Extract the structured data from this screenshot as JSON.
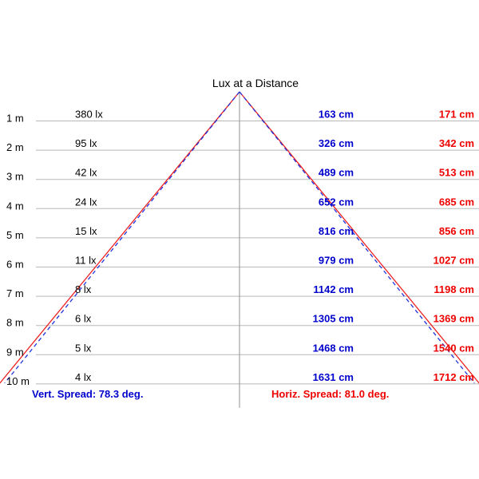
{
  "title": "Lux at a Distance",
  "colors": {
    "vertical": "#0000cc",
    "horizontal": "#ee0000",
    "row_line": "#b8b8b8",
    "axis_line": "#909090"
  },
  "rows": [
    {
      "distance": "1 m",
      "lux": "380 lx",
      "vert": "163 cm",
      "horiz": "171 cm"
    },
    {
      "distance": "2 m",
      "lux": "95 lx",
      "vert": "326 cm",
      "horiz": "342 cm"
    },
    {
      "distance": "3 m",
      "lux": "42 lx",
      "vert": "489 cm",
      "horiz": "513 cm"
    },
    {
      "distance": "4 m",
      "lux": "24 lx",
      "vert": "652 cm",
      "horiz": "685 cm"
    },
    {
      "distance": "5 m",
      "lux": "15 lx",
      "vert": "816 cm",
      "horiz": "856 cm"
    },
    {
      "distance": "6 m",
      "lux": "11 lx",
      "vert": "979 cm",
      "horiz": "1027 cm"
    },
    {
      "distance": "7 m",
      "lux": "8 lx",
      "vert": "1142 cm",
      "horiz": "1198 cm"
    },
    {
      "distance": "8 m",
      "lux": "6 lx",
      "vert": "1305 cm",
      "horiz": "1369 cm"
    },
    {
      "distance": "9 m",
      "lux": "5 lx",
      "vert": "1468 cm",
      "horiz": "1540 cm"
    },
    {
      "distance": "10 m",
      "lux": "4 lx",
      "vert": "1631 cm",
      "horiz": "1712 cm"
    }
  ],
  "vert_spread": "Vert. Spread: 78.3 deg.",
  "horiz_spread": "Horiz. Spread: 81.0 deg.",
  "beam": {
    "vert_angle_deg": 78.3,
    "horiz_angle_deg": 81.0
  }
}
